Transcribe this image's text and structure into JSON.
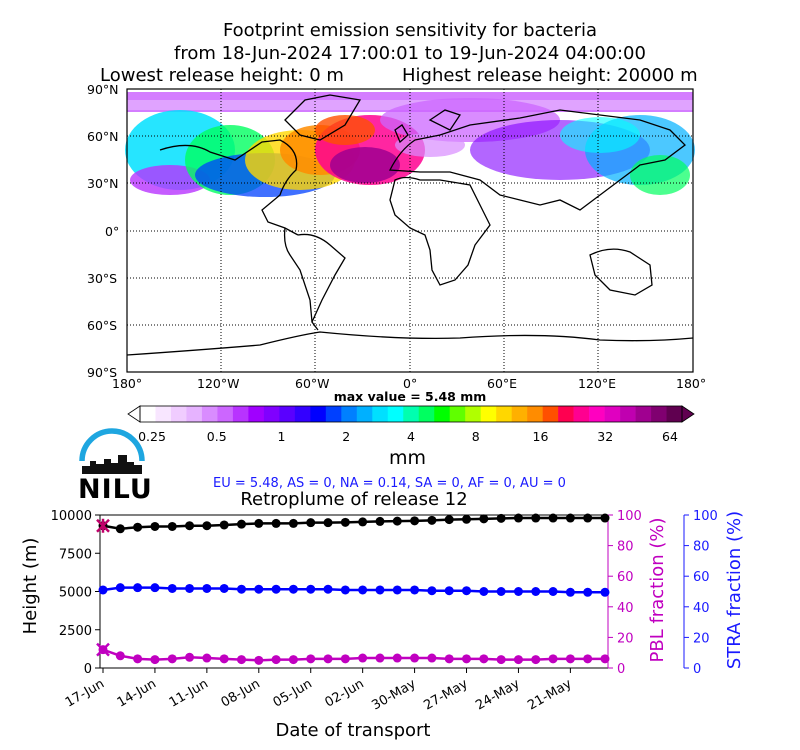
{
  "header": {
    "title_line1": "Footprint emission sensitivity for bacteria",
    "title_line2": "from 18-Jun-2024 17:00:01 to 19-Jun-2024 04:00:00",
    "lowest_release": "Lowest release height: 0 m",
    "highest_release": "Highest release height: 20000 m"
  },
  "map": {
    "lat_ticks": [
      "90°N",
      "60°N",
      "30°N",
      "0°",
      "30°S",
      "60°S",
      "90°S"
    ],
    "lon_ticks": [
      "180°",
      "120°W",
      "60°W",
      "0°",
      "60°E",
      "120°E",
      "180°"
    ],
    "max_value": "max value = 5.48 mm"
  },
  "colorbar": {
    "ticks": [
      "0.25",
      "0.5",
      "1",
      "2",
      "4",
      "8",
      "16",
      "32",
      "64"
    ],
    "unit": "mm",
    "colors": [
      "#ffffff",
      "#f8e6ff",
      "#f0ccff",
      "#e6b3ff",
      "#d98cff",
      "#cc66ff",
      "#b833ff",
      "#a000ff",
      "#8000ff",
      "#5a00ff",
      "#3300ff",
      "#0000ff",
      "#0040ff",
      "#0080ff",
      "#00b0ff",
      "#00e0ff",
      "#00ffff",
      "#00ffb0",
      "#00ff60",
      "#00ff00",
      "#60ff00",
      "#b0ff00",
      "#ffff00",
      "#ffd700",
      "#ffb000",
      "#ff8c00",
      "#ff5000",
      "#ff0050",
      "#ff0090",
      "#ff00c0",
      "#e000c0",
      "#c000b0",
      "#a00090",
      "#800070",
      "#600050"
    ]
  },
  "logo": {
    "text": "NILU"
  },
  "regions_summary": "EU = 5.48,  AS = 0,  NA = 0.14,  SA = 0,  AF = 0,  AU = 0",
  "chart_data": {
    "type": "line",
    "title": "Retroplume of release 12",
    "xlabel": "Date of transport",
    "ylabel": "Height (m)",
    "y2label": "PBL fraction (%)",
    "y3label": "STRA fraction (%)",
    "x_ticks": [
      "17-Jun",
      "14-Jun",
      "11-Jun",
      "08-Jun",
      "05-Jun",
      "02-Jun",
      "30-May",
      "27-May",
      "24-May",
      "21-May"
    ],
    "y_ticks": [
      "0",
      "2500",
      "5000",
      "7500",
      "10000"
    ],
    "y2_ticks": [
      "0",
      "20",
      "40",
      "60",
      "80",
      "100"
    ],
    "y3_ticks": [
      "0",
      "20",
      "40",
      "60",
      "80",
      "100"
    ],
    "ylim": [
      0,
      10000
    ],
    "y2lim": [
      0,
      100
    ],
    "y3lim": [
      0,
      100
    ],
    "x_days_before_release": [
      0,
      1,
      2,
      3,
      4,
      5,
      6,
      7,
      8,
      9,
      10,
      11,
      12,
      13,
      14,
      15,
      16,
      17,
      18,
      19,
      20,
      21,
      22,
      23,
      24,
      25,
      26,
      27,
      28,
      29
    ],
    "series": [
      {
        "name": "Height (m)",
        "color": "#000000",
        "axis": "left",
        "values": [
          9300,
          9100,
          9200,
          9250,
          9250,
          9300,
          9300,
          9350,
          9400,
          9450,
          9450,
          9450,
          9500,
          9500,
          9520,
          9550,
          9580,
          9600,
          9620,
          9650,
          9700,
          9720,
          9750,
          9780,
          9800,
          9800,
          9800,
          9800,
          9800,
          9800
        ]
      },
      {
        "name": "PBL fraction (%)",
        "color": "#c000c0",
        "axis": "right",
        "values": [
          12,
          8,
          6,
          5.5,
          6,
          7,
          6.5,
          6,
          5.5,
          5,
          5.5,
          5.5,
          6,
          6,
          6,
          6.5,
          6.5,
          6.5,
          6.5,
          6.5,
          6,
          6,
          6,
          5.5,
          5.5,
          5.5,
          6,
          6,
          6,
          6
        ]
      },
      {
        "name": "STRA fraction (%)",
        "color": "#0000ff",
        "axis": "right2",
        "values": [
          51,
          52.5,
          52.5,
          52.5,
          52,
          52,
          52,
          52,
          51.5,
          51.5,
          51.5,
          51.5,
          51.5,
          51.5,
          51,
          51,
          51,
          51,
          51,
          50.5,
          50.5,
          50.5,
          50,
          50,
          50,
          50,
          50,
          49.5,
          49.5,
          49.5
        ]
      }
    ]
  }
}
